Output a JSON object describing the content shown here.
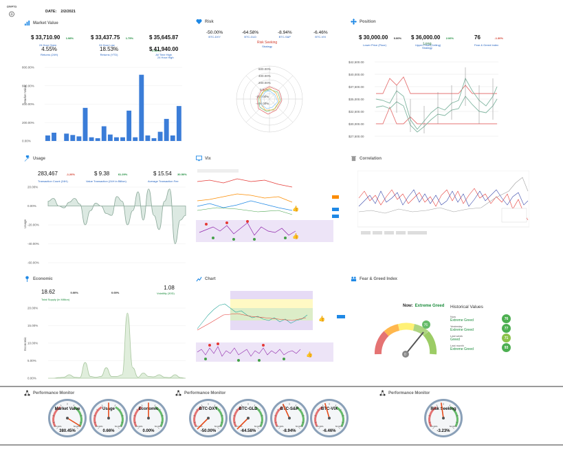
{
  "header": {
    "logo_label": "CRYPTO",
    "date_label": "DATE:",
    "date_value": "2/2/2021"
  },
  "market_value": {
    "title": "Market Value",
    "stats": [
      {
        "value": "$ 33,710.90",
        "pct": "1.98%",
        "label": "24 Hour Open"
      },
      {
        "value": "$ 33,437.75",
        "pct": "1.75%",
        "label": "24 Hour Low"
      },
      {
        "value": "$ 35,645.87",
        "pct": "2.46%",
        "label": "24 Hour High"
      },
      {
        "value": "4.55%",
        "label": "Returns (24H)"
      },
      {
        "value": "18.53%",
        "label": "Returns (YTD)"
      },
      {
        "value": "$ 41,940.00",
        "label": "All Time High"
      }
    ],
    "ylabel": "Market Value",
    "yticks": [
      "800.00%",
      "600.00%",
      "400.00%",
      "200.00%",
      "0.00%"
    ]
  },
  "risk": {
    "title": "Risk",
    "stats": [
      {
        "value": "-50.00%",
        "label": "BTC-DXY"
      },
      {
        "value": "-64.58%",
        "label": "BTC-GLD"
      },
      {
        "value": "-8.94%",
        "label": "BTC-S&P"
      },
      {
        "value": "-6.46%",
        "label": "BTC-VIX"
      }
    ],
    "seeking_value": "Risk Seeking",
    "seeking_label": "Strategy",
    "radial_ticks": [
      "600.00%",
      "400.00%",
      "200.00%",
      "0.00%",
      "-200.00%",
      "-400.00%"
    ]
  },
  "position": {
    "title": "Position",
    "stats": [
      {
        "value": "$ 30,000.00",
        "pct": "0.00%",
        "label": "Lower Price (Floor)"
      },
      {
        "value": "$ 36,000.00",
        "pct": "2.06%",
        "label": "Upper Price (Ceiling)"
      },
      {
        "value": "76",
        "pct": "-1.30%",
        "label": "Fear & Greed Index"
      }
    ],
    "long_value": "Long",
    "long_label": "Strategy",
    "yticks": [
      "$42,500.00",
      "$40,000.00",
      "$37,500.00",
      "$35,000.00",
      "$32,500.00",
      "$30,000.00",
      "$27,500.00"
    ]
  },
  "usage": {
    "title": "Usage",
    "stats": [
      {
        "value": "283,467",
        "pct": "-1.26%",
        "label": "Transaction Count (24H)"
      },
      {
        "value": "$ 9.38",
        "pct": "61.29%",
        "label": "Value Transaction (24H in Billion)"
      },
      {
        "value": "$ 15.54",
        "pct": "30.50%",
        "label": "Average Transaction Fee"
      }
    ],
    "ylabel": "Usage",
    "yticks": [
      "20.00%",
      "0.00%",
      "-20.00%",
      "-40.00%",
      "-60.00%"
    ]
  },
  "vix": {
    "title": "Vix"
  },
  "correlation": {
    "title": "Correlation"
  },
  "economic": {
    "title": "Economic",
    "stats": [
      {
        "value": "18.62",
        "pct": "0.00%",
        "label": "Total Supply (in Million)"
      },
      {
        "value": "1.08",
        "pct": "0.00%",
        "label": "Volatility (30D)"
      }
    ],
    "ylabel": "Economic",
    "yticks": [
      "20.00%",
      "15.00%",
      "10.00%",
      "5.00%",
      "0.00%"
    ]
  },
  "chart_panel": {
    "title": "Chart"
  },
  "fear_greed": {
    "title": "Fear & Greed Index",
    "now_label": "Now:",
    "now_value": "Extreme Greed",
    "gauge_value": "76",
    "gauge_needle": "0",
    "historical_title": "Historical Values",
    "history": [
      {
        "period": "Now",
        "status": "Extreme Greed",
        "value": "76",
        "color": "#4caf50"
      },
      {
        "period": "Yesterday",
        "status": "Extreme Greed",
        "value": "77",
        "color": "#4caf50"
      },
      {
        "period": "Last week",
        "status": "Greed",
        "value": "71",
        "color": "#8bc34a"
      },
      {
        "period": "Last month",
        "status": "Extreme Greed",
        "value": "93",
        "color": "#4caf50"
      }
    ]
  },
  "monitor": {
    "group_title": "Performance Monitor",
    "gauges": [
      {
        "name": "Market Value",
        "value": "380.45%",
        "lo": "-50.00%",
        "hi": "50.00%",
        "level": 0.95
      },
      {
        "name": "Usage",
        "value": "0.66%",
        "lo": "-50.00%",
        "hi": "50.00%",
        "level": 0.5
      },
      {
        "name": "Economic",
        "value": "0.00%",
        "lo": "-50.00%",
        "hi": "50.00%",
        "level": 0.5
      },
      {
        "name": "BTC-DXY",
        "value": "-50.00%",
        "lo": "-50.00%",
        "hi": "50.00%",
        "level": 0.0
      },
      {
        "name": "BTC-GLD",
        "value": "-64.58%",
        "lo": "-50.00%",
        "hi": "50.00%",
        "level": 0.0
      },
      {
        "name": "BTC-S&P",
        "value": "-8.94%",
        "lo": "-50.00%",
        "hi": "50.00%",
        "level": 0.41
      },
      {
        "name": "BTC-VIX",
        "value": "-6.46%",
        "lo": "-50.00%",
        "hi": "50.00%",
        "level": 0.44
      },
      {
        "name": "Risk Seeking",
        "value": "-3.23%",
        "lo": "-50.00%",
        "hi": "50.00%",
        "level": 0.47
      }
    ]
  },
  "chart_data": [
    {
      "type": "bar",
      "title": "",
      "ylabel": "Market Value",
      "ylim": [
        0,
        800
      ],
      "values": [
        60,
        90,
        0,
        80,
        65,
        50,
        360,
        40,
        30,
        160,
        70,
        40,
        40,
        330,
        40,
        720,
        60,
        30,
        100,
        240,
        60,
        380
      ]
    },
    {
      "type": "area",
      "title": "",
      "ylabel": "Usage",
      "ylim": [
        -60,
        20
      ],
      "values": [
        5,
        8,
        0,
        -2,
        4,
        8,
        2,
        -20,
        -5,
        3,
        0,
        -8,
        -10,
        10,
        5,
        -20,
        -5,
        15,
        -15,
        18,
        -10,
        -25,
        5,
        18,
        -40,
        -15,
        -10
      ]
    },
    {
      "type": "area",
      "title": "",
      "ylabel": "Economic",
      "ylim": [
        0,
        20
      ],
      "values": [
        0,
        0,
        0.2,
        0.3,
        1.0,
        0.3,
        0.2,
        4.5,
        0.5,
        0.3,
        0.5,
        3,
        0.5,
        0.5,
        1.0,
        18.6,
        3.0,
        0.3,
        1.5,
        0.5,
        0.4,
        1.0,
        0.3,
        0.2,
        1.0,
        0.2,
        0.0
      ]
    }
  ]
}
